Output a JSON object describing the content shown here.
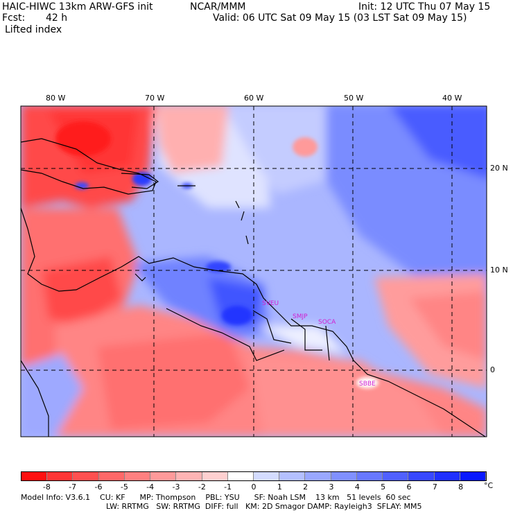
{
  "header": {
    "model_title": "HAIC-HIWC 13km ARW-GFS init",
    "org": "NCAR/MMM",
    "init": "Init: 12 UTC Thu 07 May 15",
    "fcst_label": "Fcst:",
    "fcst_value": "42 h",
    "valid": "Valid: 06 UTC Sat 09 May 15 (03 LST Sat 09 May 15)",
    "field": "Lifted index"
  },
  "map": {
    "lon_labels": [
      "80 W",
      "70 W",
      "60 W",
      "50 W",
      "40 W"
    ],
    "lat_labels": [
      "20 N",
      "10 N",
      "0"
    ],
    "stations": [
      "SVEU",
      "SMJP",
      "SOCA",
      "SBBE"
    ]
  },
  "colorbar": {
    "labels": [
      "-8",
      "-7",
      "-6",
      "-5",
      "-4",
      "-3",
      "-2",
      "-1",
      "0",
      "1",
      "2",
      "3",
      "4",
      "5",
      "6",
      "7",
      "8"
    ],
    "unit": "°C",
    "colors": [
      "#ff1010",
      "#ff3535",
      "#ff5050",
      "#ff6868",
      "#ff8080",
      "#ff9a9a",
      "#ffb4b4",
      "#ffd0d0",
      "#ffffff",
      "#d4dcff",
      "#b4c0ff",
      "#9aa8ff",
      "#8090ff",
      "#6878ff",
      "#5060ff",
      "#3848ff",
      "#2030ff",
      "#0818ff"
    ]
  },
  "model_info": {
    "line1": "Model Info: V3.6.1    CU: KF      MP: Thompson    PBL: YSU      SF: Noah LSM    13 km   51 levels  60 sec",
    "line2": "LW: RRTMG   SW: RRTMG  DIFF: full   KM: 2D Smagor DAMP: Rayleigh3  SFLAY: MM5"
  }
}
